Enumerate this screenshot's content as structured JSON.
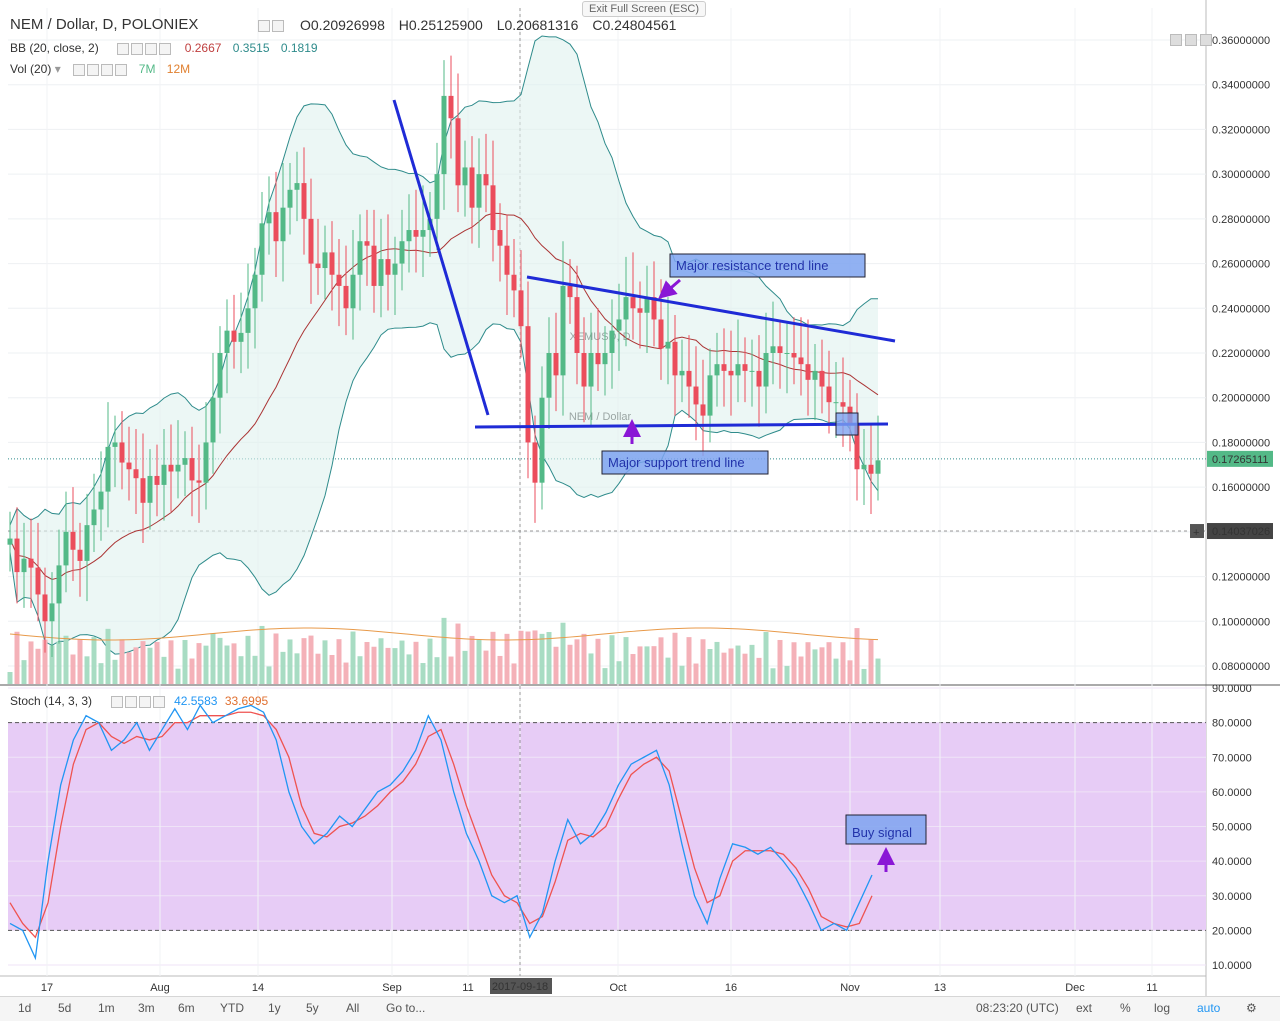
{
  "header": {
    "symbol": "NEM / Dollar, D, POLONIEX",
    "open": "O0.20926998",
    "high": "H0.25125900",
    "low": "L0.20681316",
    "close": "C0.24804561",
    "exit_fullscreen": "Exit Full Screen (ESC)"
  },
  "indicators": {
    "bb_label": "BB (20, close, 2)",
    "bb_v1": "0.2667",
    "bb_v2": "0.3515",
    "bb_v3": "0.1819",
    "vol_label": "Vol (20)",
    "vol_v1": "7M",
    "vol_v2": "12M",
    "stoch_label": "Stoch (14, 3, 3)",
    "stoch_v1": "42.5583",
    "stoch_v2": "33.6995"
  },
  "watermark": {
    "big": "XEMUSD, D",
    "small": "NEM / Dollar"
  },
  "annotations": {
    "resistance": "Major resistance trend line",
    "support": "Major support trend line",
    "buy": "Buy signal"
  },
  "price_tags": {
    "last": "0.17265111",
    "cross": "0.14037026"
  },
  "toolbar": {
    "ranges": [
      "1d",
      "5d",
      "1m",
      "3m",
      "6m",
      "YTD",
      "1y",
      "5y",
      "All",
      "Go to..."
    ],
    "time": "08:23:20 (UTC)",
    "ext": "ext",
    "pct": "%",
    "log": "log",
    "auto": "auto"
  },
  "colors": {
    "up": "#53b987",
    "down": "#eb4d5c",
    "bb": "#2e8b8b",
    "stoch_k": "#2196f3",
    "stoch_d": "#ef5350",
    "trend": "#1f2bd6",
    "stoch_bg": "#e5c8f7",
    "arrow": "#8a17d6"
  },
  "chart_data": [
    {
      "type": "candlestick",
      "title": "NEM / Dollar, D, POLONIEX",
      "y_ticks": [
        "0.36000000",
        "0.34000000",
        "0.32000000",
        "0.30000000",
        "0.28000000",
        "0.26000000",
        "0.24000000",
        "0.22000000",
        "0.20000000",
        "0.18000000",
        "0.16000000",
        "0.14000000",
        "0.12000000",
        "0.10000000",
        "0.08000000"
      ],
      "ylim": [
        0.075,
        0.365
      ],
      "x_ticks": [
        "17",
        "Aug",
        "14",
        "Sep",
        "11",
        "2017-09-18",
        "Oct",
        "16",
        "Nov",
        "13",
        "Dec",
        "11"
      ],
      "close": [
        0.137,
        0.122,
        0.128,
        0.124,
        0.112,
        0.1,
        0.108,
        0.125,
        0.14,
        0.132,
        0.127,
        0.143,
        0.15,
        0.158,
        0.178,
        0.18,
        0.171,
        0.168,
        0.164,
        0.153,
        0.165,
        0.161,
        0.17,
        0.167,
        0.17,
        0.173,
        0.163,
        0.162,
        0.18,
        0.2,
        0.22,
        0.23,
        0.225,
        0.229,
        0.24,
        0.255,
        0.278,
        0.283,
        0.27,
        0.285,
        0.293,
        0.296,
        0.28,
        0.26,
        0.258,
        0.265,
        0.255,
        0.25,
        0.24,
        0.255,
        0.27,
        0.268,
        0.25,
        0.262,
        0.255,
        0.26,
        0.27,
        0.275,
        0.272,
        0.275,
        0.28,
        0.3,
        0.335,
        0.325,
        0.295,
        0.303,
        0.285,
        0.3,
        0.295,
        0.275,
        0.268,
        0.255,
        0.248,
        0.232,
        0.18,
        0.162,
        0.2,
        0.22,
        0.21,
        0.25,
        0.245,
        0.22,
        0.205,
        0.22,
        0.215,
        0.22,
        0.23,
        0.235,
        0.245,
        0.24,
        0.238,
        0.245,
        0.235,
        0.222,
        0.225,
        0.21,
        0.212,
        0.205,
        0.197,
        0.192,
        0.21,
        0.215,
        0.212,
        0.21,
        0.215,
        0.212,
        0.212,
        0.205,
        0.22,
        0.223,
        0.22,
        0.22,
        0.218,
        0.215,
        0.208,
        0.212,
        0.205,
        0.198,
        0.198,
        0.196,
        0.188,
        0.168,
        0.17,
        0.166,
        0.172
      ],
      "volume_ticks": [
        "7M",
        "12M"
      ],
      "trend_lines": [
        "Major resistance trend line",
        "Major support trend line"
      ]
    },
    {
      "type": "line",
      "title": "Stoch (14, 3, 3)",
      "y_ticks": [
        "90.0000",
        "80.0000",
        "70.0000",
        "60.0000",
        "50.0000",
        "40.0000",
        "30.0000",
        "20.0000",
        "10.0000"
      ],
      "ylim": [
        7,
        91
      ],
      "k": [
        22,
        20,
        12,
        40,
        62,
        75,
        82,
        80,
        72,
        75,
        80,
        72,
        78,
        84,
        78,
        85,
        80,
        82,
        84,
        85,
        83,
        75,
        60,
        50,
        45,
        48,
        53,
        50,
        55,
        60,
        62,
        66,
        72,
        82,
        75,
        60,
        48,
        40,
        30,
        28,
        30,
        18,
        25,
        40,
        52,
        45,
        48,
        54,
        62,
        68,
        70,
        72,
        62,
        45,
        30,
        22,
        35,
        45,
        44,
        42,
        44,
        40,
        35,
        28,
        20,
        22,
        20,
        28,
        36
      ],
      "d": [
        28,
        22,
        18,
        28,
        50,
        68,
        78,
        80,
        76,
        74,
        76,
        75,
        76,
        80,
        80,
        82,
        82,
        82,
        83,
        83,
        82,
        78,
        70,
        56,
        48,
        47,
        50,
        51,
        53,
        56,
        60,
        63,
        68,
        76,
        78,
        68,
        56,
        46,
        36,
        30,
        28,
        22,
        24,
        34,
        46,
        48,
        47,
        50,
        58,
        65,
        68,
        70,
        66,
        52,
        38,
        28,
        30,
        40,
        43,
        43,
        43,
        42,
        38,
        32,
        24,
        22,
        21,
        22,
        30
      ],
      "series": [
        {
          "name": "42.5583"
        },
        {
          "name": "33.6995"
        }
      ]
    }
  ]
}
